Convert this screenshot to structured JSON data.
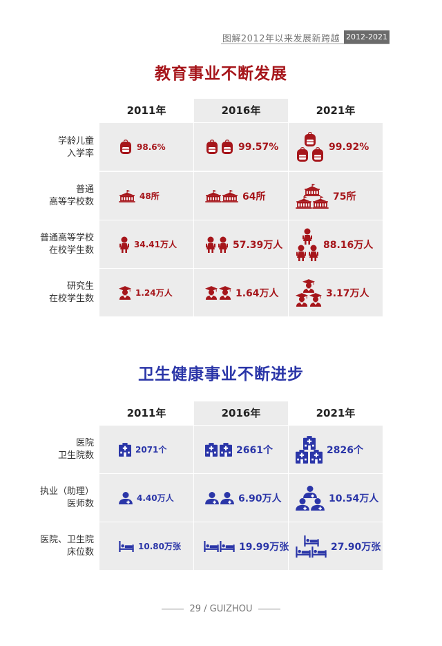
{
  "header": {
    "title": "图解2012年以来发展新跨越",
    "badge": "2012-2021"
  },
  "education": {
    "title": "教育事业不断发展",
    "years": [
      "2011年",
      "2016年",
      "2021年"
    ],
    "rows": [
      {
        "label1": "学龄儿童",
        "label2": "入学率",
        "icon": "backpack-icon",
        "values": [
          "98.6%",
          "99.57%",
          "99.92%"
        ]
      },
      {
        "label1": "普通",
        "label2": "高等学校数",
        "icon": "school-building-icon",
        "values": [
          "48所",
          "64所",
          "75所"
        ]
      },
      {
        "label1": "普通高等学校",
        "label2": "在校学生数",
        "icon": "student-icon",
        "values": [
          "34.41万人",
          "57.39万人",
          "88.16万人"
        ]
      },
      {
        "label1": "研究生",
        "label2": "在校学生数",
        "icon": "graduate-icon",
        "values": [
          "1.24万人",
          "1.64万人",
          "3.17万人"
        ]
      }
    ]
  },
  "health": {
    "title": "卫生健康事业不断进步",
    "years": [
      "2011年",
      "2016年",
      "2021年"
    ],
    "rows": [
      {
        "label1": "医院",
        "label2": "卫生院数",
        "icon": "hospital-icon",
        "values": [
          "2071个",
          "2661个",
          "2826个"
        ]
      },
      {
        "label1": "执业（助理）",
        "label2": "医师数",
        "icon": "doctor-icon",
        "values": [
          "4.40万人",
          "6.90万人",
          "10.54万人"
        ]
      },
      {
        "label1": "医院、卫生院",
        "label2": "床位数",
        "icon": "bed-icon",
        "values": [
          "10.80万张",
          "19.99万张",
          "27.90万张"
        ]
      }
    ]
  },
  "colors": {
    "red": "#a6161b",
    "blue": "#2b36a8",
    "cell_bg": "#ececec"
  },
  "footer": {
    "text": "29 / GUIZHOU"
  }
}
